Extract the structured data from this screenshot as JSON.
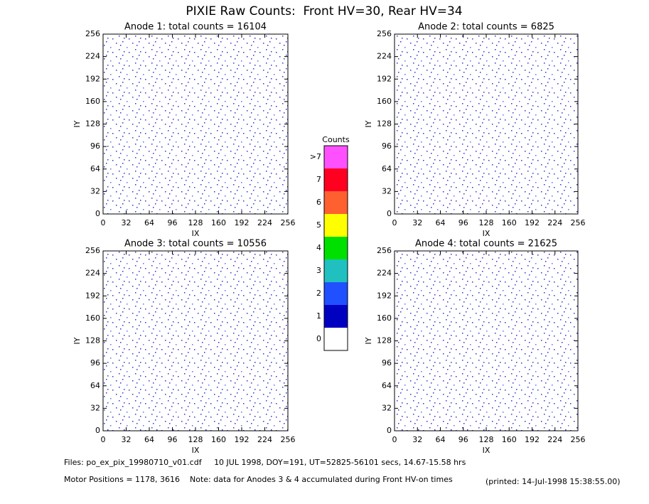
{
  "title": "PIXIE Raw Counts:  Front HV=30, Rear HV=34",
  "chart_data": [
    {
      "type": "heatmap",
      "title": "Anode 1: total counts = 16104",
      "xlabel": "IX",
      "ylabel": "IY",
      "xlim": [
        0,
        256
      ],
      "ylim": [
        0,
        256
      ],
      "xticks": [
        0,
        32,
        64,
        96,
        128,
        160,
        192,
        224,
        256
      ],
      "yticks": [
        0,
        32,
        64,
        96,
        128,
        160,
        192,
        224,
        256
      ]
    },
    {
      "type": "heatmap",
      "title": "Anode 2: total counts = 6825",
      "xlabel": "IX",
      "ylabel": "IY",
      "xlim": [
        0,
        256
      ],
      "ylim": [
        0,
        256
      ],
      "xticks": [
        0,
        32,
        64,
        96,
        128,
        160,
        192,
        224,
        256
      ],
      "yticks": [
        0,
        32,
        64,
        96,
        128,
        160,
        192,
        224,
        256
      ]
    },
    {
      "type": "heatmap",
      "title": "Anode 3: total counts = 10556",
      "xlabel": "IX",
      "ylabel": "IY",
      "xlim": [
        0,
        256
      ],
      "ylim": [
        0,
        256
      ],
      "xticks": [
        0,
        32,
        64,
        96,
        128,
        160,
        192,
        224,
        256
      ],
      "yticks": [
        0,
        32,
        64,
        96,
        128,
        160,
        192,
        224,
        256
      ]
    },
    {
      "type": "heatmap",
      "title": "Anode 4: total counts = 21625",
      "xlabel": "IX",
      "ylabel": "IY",
      "xlim": [
        0,
        256
      ],
      "ylim": [
        0,
        256
      ],
      "xticks": [
        0,
        32,
        64,
        96,
        128,
        160,
        192,
        224,
        256
      ],
      "yticks": [
        0,
        32,
        64,
        96,
        128,
        160,
        192,
        224,
        256
      ]
    }
  ],
  "colorbar": {
    "title": "Counts",
    "labels": [
      "0",
      "1",
      "2",
      "3",
      "4",
      "5",
      "6",
      "7",
      ">7"
    ],
    "colors": [
      "#ffffff",
      "#0000c0",
      "#2050ff",
      "#20c0c0",
      "#00e000",
      "#ffff00",
      "#ff6030",
      "#ff0020",
      "#ff50ff"
    ]
  },
  "footer": {
    "files": "Files: po_ex_pix_19980710_v01.cdf     10 JUL 1998, DOY=191, UT=52825-56101 secs, 14.67-15.58 hrs",
    "motor": "Motor Positions = 1178, 3616    Note: data for Anodes 3 & 4 accumulated during Front HV-on times",
    "printed": "(printed: 14-Jul-1998 15:38:55.00)"
  }
}
